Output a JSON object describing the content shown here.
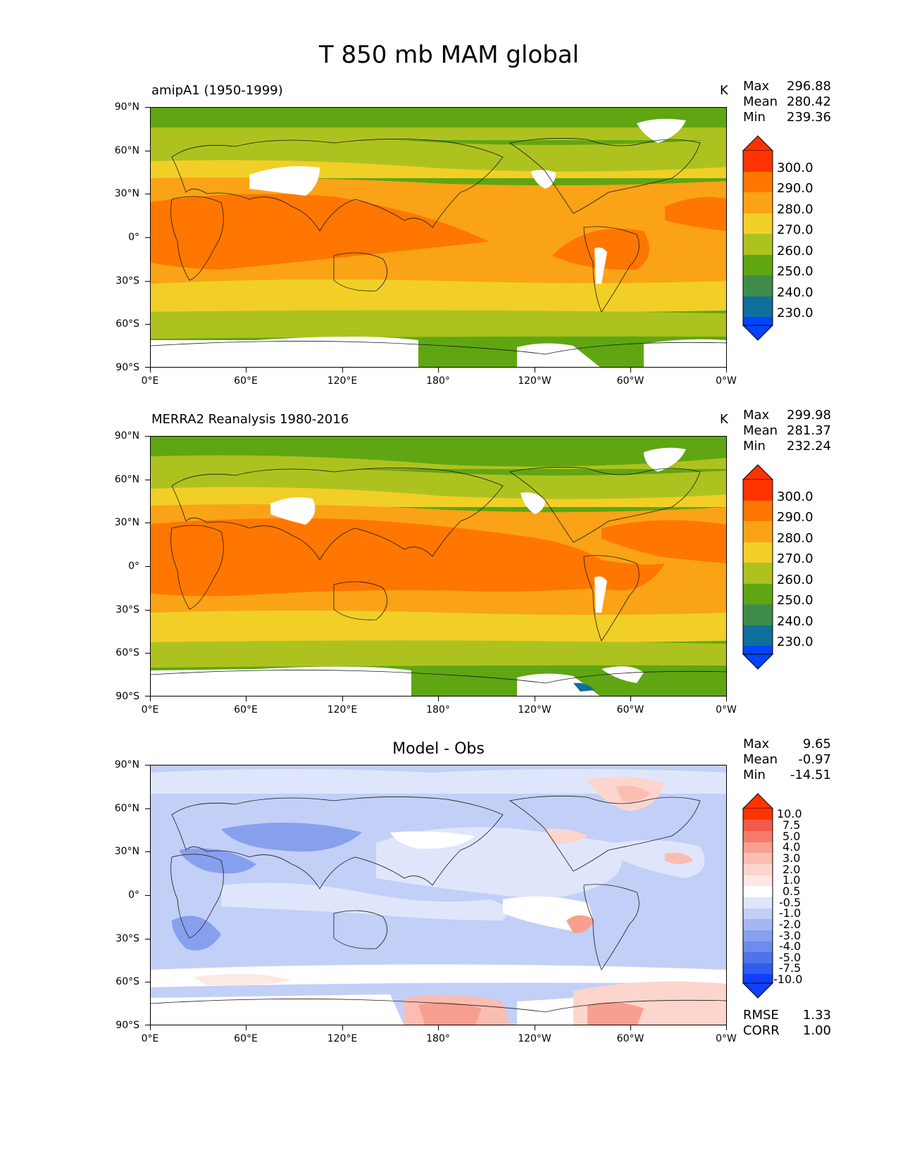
{
  "figure_title": "T 850 mb MAM global",
  "axes": {
    "lat_labels": [
      "90°N",
      "60°N",
      "30°N",
      "0°",
      "30°S",
      "60°S",
      "90°S"
    ],
    "lon_labels": [
      "0°E",
      "60°E",
      "120°E",
      "180°",
      "120°W",
      "60°W",
      "0°W"
    ]
  },
  "panels": [
    {
      "title": "amipA1 (1950-1999)",
      "unit": "K",
      "stats": {
        "max_label": "Max",
        "max": "296.88",
        "mean_label": "Mean",
        "mean": "280.42",
        "min_label": "Min",
        "min": "239.36"
      },
      "colorbar_labels": [
        "300.0",
        "290.0",
        "280.0",
        "270.0",
        "260.0",
        "250.0",
        "240.0",
        "230.0"
      ]
    },
    {
      "title": "MERRA2 Reanalysis 1980-2016",
      "unit": "K",
      "stats": {
        "max_label": "Max",
        "max": "299.98",
        "mean_label": "Mean",
        "mean": "281.37",
        "min_label": "Min",
        "min": "232.24"
      },
      "colorbar_labels": [
        "300.0",
        "290.0",
        "280.0",
        "270.0",
        "260.0",
        "250.0",
        "240.0",
        "230.0"
      ]
    },
    {
      "title": "Model - Obs",
      "stats": {
        "max_label": "Max",
        "max": "9.65",
        "mean_label": "Mean",
        "mean": "-0.97",
        "min_label": "Min",
        "min": "-14.51"
      },
      "colorbar_labels": [
        "10.0",
        "7.5",
        "5.0",
        "4.0",
        "3.0",
        "2.0",
        "1.0",
        "0.5",
        "-0.5",
        "-1.0",
        "-2.0",
        "-3.0",
        "-4.0",
        "-5.0",
        "-7.5",
        "-10.0"
      ],
      "footer": {
        "rmse_label": "RMSE",
        "rmse": "1.33",
        "corr_label": "CORR",
        "corr": "1.00"
      }
    }
  ],
  "colors": {
    "abs_scale": [
      "#ff3300",
      "#ff7700",
      "#faa316",
      "#f2cf27",
      "#aec21f",
      "#5fa612",
      "#3f8c4a",
      "#0f6f9b",
      "#0044ff"
    ],
    "diff_scale": [
      "#ff3300",
      "#f25a4a",
      "#f57a6a",
      "#f8a090",
      "#fbbdb2",
      "#fcd5cd",
      "#fde8e4",
      "#ffffff",
      "#dfe6fb",
      "#c2cff7",
      "#a4b7f2",
      "#86a0ee",
      "#6c8bec",
      "#4f73ea",
      "#2f5cf0",
      "#1040ff"
    ]
  }
}
